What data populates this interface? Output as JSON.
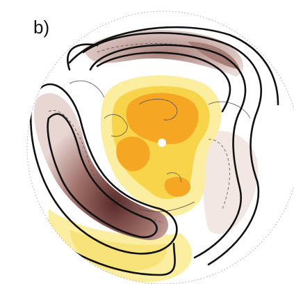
{
  "panel_label": "b)"
}
